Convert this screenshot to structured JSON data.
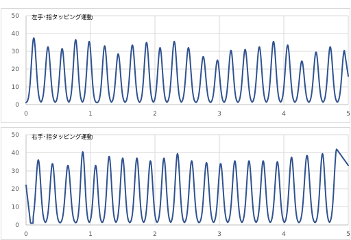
{
  "chart_data": [
    {
      "type": "line",
      "title": "左手･指タッピング運動",
      "xlim": [
        0,
        5
      ],
      "ylim": [
        0,
        50
      ],
      "x_ticks": [
        "0",
        "1",
        "2",
        "3",
        "4",
        "5"
      ],
      "y_ticks": [
        "0",
        "10",
        "20",
        "30",
        "40",
        "50"
      ],
      "grid": true,
      "series_color": "#2F528F",
      "baseline": 1,
      "peaks": [
        {
          "x": 0.12,
          "y": 37.5
        },
        {
          "x": 0.34,
          "y": 32.5
        },
        {
          "x": 0.56,
          "y": 31.5
        },
        {
          "x": 0.77,
          "y": 36.5
        },
        {
          "x": 0.98,
          "y": 35.5
        },
        {
          "x": 1.22,
          "y": 33.0
        },
        {
          "x": 1.43,
          "y": 28.5
        },
        {
          "x": 1.65,
          "y": 33.5
        },
        {
          "x": 1.87,
          "y": 35.0
        },
        {
          "x": 2.08,
          "y": 32.0
        },
        {
          "x": 2.3,
          "y": 35.5
        },
        {
          "x": 2.52,
          "y": 32.0
        },
        {
          "x": 2.75,
          "y": 27.0
        },
        {
          "x": 2.97,
          "y": 25.0
        },
        {
          "x": 3.18,
          "y": 30.5
        },
        {
          "x": 3.4,
          "y": 31.0
        },
        {
          "x": 3.62,
          "y": 32.5
        },
        {
          "x": 3.84,
          "y": 35.5
        },
        {
          "x": 4.06,
          "y": 33.5
        },
        {
          "x": 4.28,
          "y": 24.5
        },
        {
          "x": 4.5,
          "y": 29.5
        },
        {
          "x": 4.72,
          "y": 32.5
        },
        {
          "x": 4.94,
          "y": 30.5
        }
      ],
      "end_value": 16
    },
    {
      "type": "line",
      "title": "右手･指タッピング運動",
      "xlim": [
        0,
        5
      ],
      "ylim": [
        0,
        50
      ],
      "x_ticks": [
        "0",
        "1",
        "2",
        "3",
        "4",
        "5"
      ],
      "y_ticks": [
        "0",
        "10",
        "20",
        "30",
        "40",
        "50"
      ],
      "grid": true,
      "series_color": "#2F528F",
      "baseline": 1,
      "start_value": 22,
      "peaks": [
        {
          "x": 0.19,
          "y": 36.0
        },
        {
          "x": 0.41,
          "y": 34.0
        },
        {
          "x": 0.65,
          "y": 33.0
        },
        {
          "x": 0.88,
          "y": 40.5
        },
        {
          "x": 1.08,
          "y": 33.0
        },
        {
          "x": 1.29,
          "y": 38.0
        },
        {
          "x": 1.5,
          "y": 37.0
        },
        {
          "x": 1.72,
          "y": 37.0
        },
        {
          "x": 1.93,
          "y": 35.5
        },
        {
          "x": 2.14,
          "y": 37.0
        },
        {
          "x": 2.35,
          "y": 39.5
        },
        {
          "x": 2.57,
          "y": 35.5
        },
        {
          "x": 2.8,
          "y": 34.5
        },
        {
          "x": 3.02,
          "y": 34.0
        },
        {
          "x": 3.24,
          "y": 35.5
        },
        {
          "x": 3.46,
          "y": 35.5
        },
        {
          "x": 3.68,
          "y": 35.5
        },
        {
          "x": 3.9,
          "y": 35.0
        },
        {
          "x": 4.12,
          "y": 37.5
        },
        {
          "x": 4.36,
          "y": 38.5
        },
        {
          "x": 4.6,
          "y": 39.5
        },
        {
          "x": 4.82,
          "y": 42.0
        }
      ],
      "end_value": 33
    }
  ]
}
